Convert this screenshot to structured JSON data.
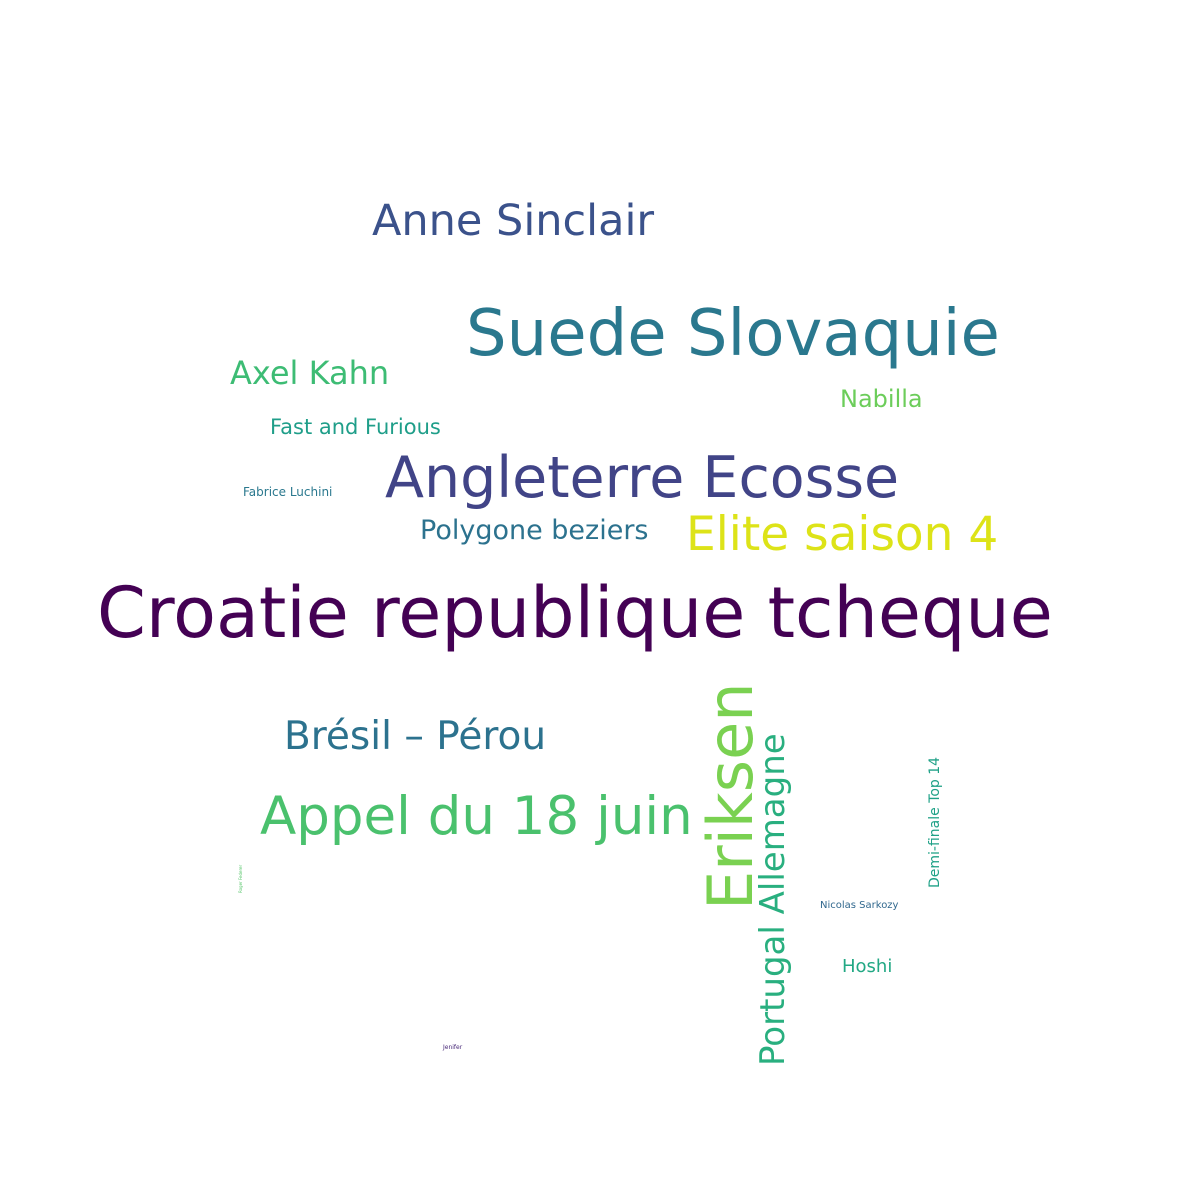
{
  "words": {
    "croatie": {
      "text": "Croatie republique tcheque",
      "color": "#440154"
    },
    "suede": {
      "text": "Suede Slovaquie",
      "color": "#2a788e"
    },
    "angleterre": {
      "text": "Angleterre Ecosse",
      "color": "#414487"
    },
    "appel": {
      "text": "Appel du 18 juin",
      "color": "#4ac16d"
    },
    "anne": {
      "text": "Anne Sinclair",
      "color": "#3b528b"
    },
    "elite": {
      "text": "Elite saison 4",
      "color": "#dde318"
    },
    "bresil": {
      "text": "Brésil – Pérou",
      "color": "#2c728e"
    },
    "axel": {
      "text": "Axel Kahn",
      "color": "#3dbc74"
    },
    "polygone": {
      "text": "Polygone beziers",
      "color": "#2c728e"
    },
    "fast": {
      "text": "Fast and Furious",
      "color": "#1f9e89"
    },
    "nabilla": {
      "text": "Nabilla",
      "color": "#6ccd5a"
    },
    "fabrice": {
      "text": "Fabrice Luchini",
      "color": "#2a788e"
    },
    "hoshi": {
      "text": "Hoshi",
      "color": "#22a884"
    },
    "nicolas": {
      "text": "Nicolas Sarkozy",
      "color": "#31688e"
    },
    "jenifer": {
      "text": "Jenifer",
      "color": "#482878"
    },
    "eriksen": {
      "text": "Eriksen",
      "color": "#7ad151"
    },
    "portugal": {
      "text": "Portugal Allemagne",
      "color": "#29af7f"
    },
    "demi": {
      "text": "Demi-finale Top 14",
      "color": "#1fa187"
    },
    "tiny": {
      "text": "Roger Federer",
      "color": "#54c568"
    }
  }
}
